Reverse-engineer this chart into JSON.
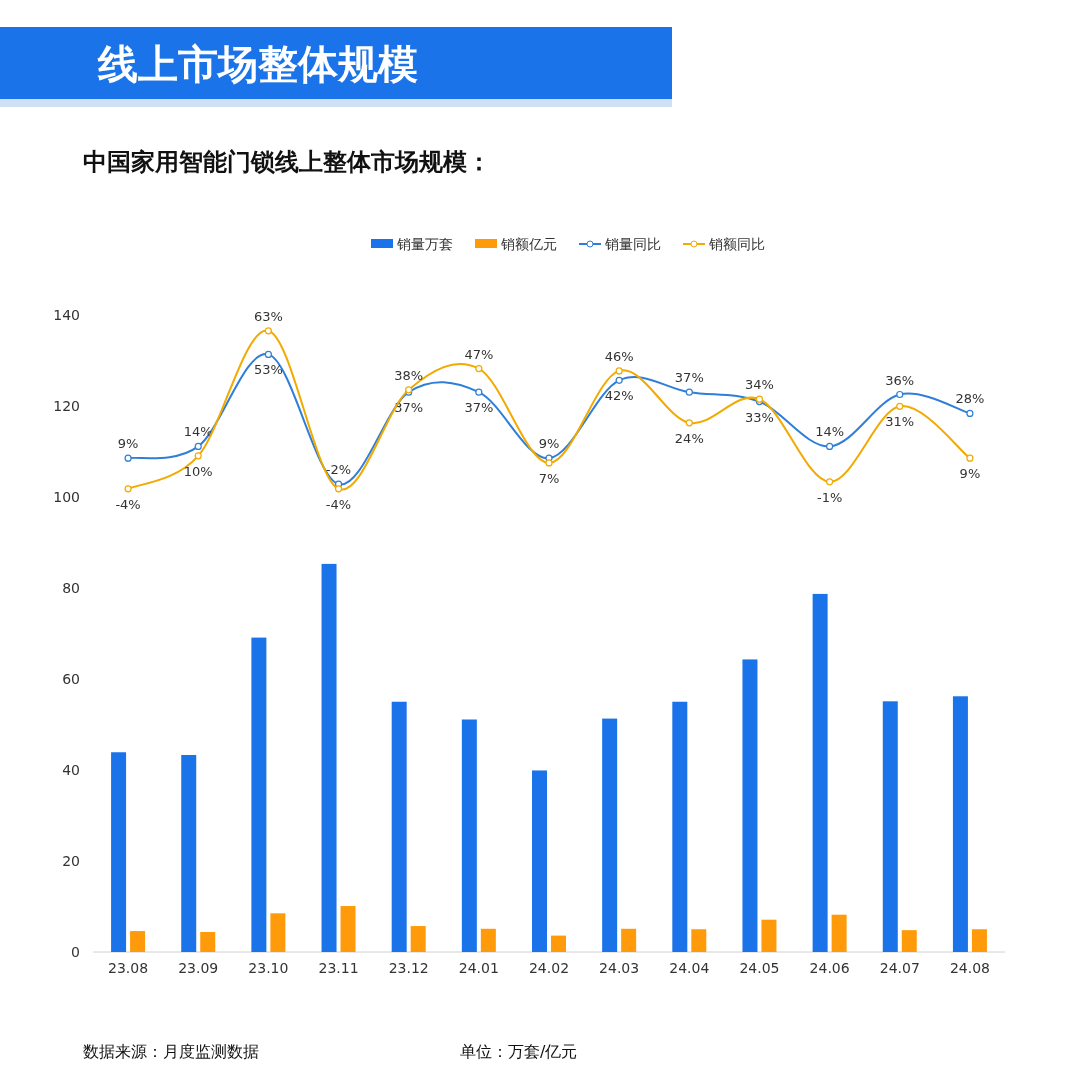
{
  "chart_data": {
    "type": "bar",
    "title": "线上市场整体规模",
    "subtitle": "中国家用智能门锁线上整体市场规模：",
    "categories": [
      "23.08",
      "23.09",
      "23.10",
      "23.11",
      "23.12",
      "24.01",
      "24.02",
      "24.03",
      "24.04",
      "24.05",
      "24.06",
      "24.07",
      "24.08"
    ],
    "series": [
      {
        "name": "销量万套",
        "color": "#1a73e8",
        "values": [
          43.9,
          43.3,
          69.1,
          85.3,
          55.0,
          51.1,
          39.9,
          51.3,
          55.0,
          64.3,
          78.7,
          55.1,
          56.2
        ]
      },
      {
        "name": "销额亿元",
        "color": "#ff9a0a",
        "values": [
          4.6,
          4.4,
          8.5,
          10.1,
          5.7,
          5.1,
          3.6,
          5.1,
          5.0,
          7.1,
          8.2,
          4.8,
          5.0
        ]
      },
      {
        "name": "销量同比",
        "type": "line",
        "axis": "y2",
        "marker": "circle",
        "color": "#2f7ed8",
        "values": [
          9,
          14,
          53,
          -2,
          37,
          37,
          9,
          42,
          37,
          33,
          14,
          36,
          28
        ],
        "value_labels": [
          "9%",
          "14%",
          "53%",
          "-2%",
          "37%",
          "37%",
          "9%",
          "42%",
          "37%",
          "33%",
          "14%",
          "36%",
          "28%"
        ]
      },
      {
        "name": "销额同比",
        "type": "line",
        "axis": "y2",
        "marker": "circle",
        "color": "#f2a900",
        "values": [
          -4,
          10,
          63,
          -4,
          38,
          47,
          7,
          46,
          24,
          34,
          -1,
          31,
          9
        ],
        "value_labels": [
          "-4%",
          "10%",
          "63%",
          "-4%",
          "38%",
          "47%",
          "7%",
          "46%",
          "24%",
          "34%",
          "-1%",
          "31%",
          "9%"
        ]
      }
    ],
    "ylim": [
      0,
      140
    ],
    "yticks": [
      0,
      20,
      40,
      60,
      80,
      100,
      120,
      140
    ],
    "legend": "top",
    "annotations": [
      "数据来源：月度监测数据",
      "单位：万套/亿元"
    ]
  }
}
